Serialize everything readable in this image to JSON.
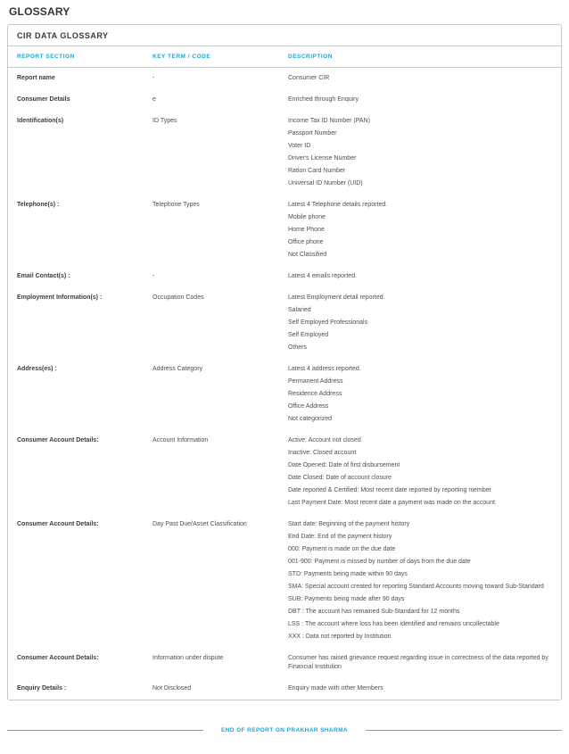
{
  "page_title": "GLOSSARY",
  "panel": {
    "title": "CIR DATA GLOSSARY",
    "columns": [
      "REPORT SECTION",
      "KEY TERM / CODE",
      "DESCRIPTION"
    ],
    "rows": [
      {
        "section": "Report name",
        "key_term": "-",
        "description": [
          "Consumer CIR"
        ]
      },
      {
        "section": "Consumer Details",
        "key_term": "e",
        "description": [
          "Enriched through Enquiry"
        ]
      },
      {
        "section": "Identification(s)",
        "key_term": "ID Types",
        "description": [
          "Income Tax ID Number (PAN)",
          "Passport Number",
          "Voter ID",
          "Driver's License Number",
          "Ration Card Number",
          "Universal ID Number (UID)"
        ]
      },
      {
        "section": "Telephone(s) :",
        "key_term": "Telephone Types",
        "description": [
          "Latest 4 Telephone details reported.",
          "Mobile phone",
          "Home Phone",
          "Office phone",
          "Not Classified"
        ]
      },
      {
        "section": "Email Contact(s) :",
        "key_term": "-",
        "description": [
          "Latest 4 emails reported."
        ]
      },
      {
        "section": "Employment Information(s) :",
        "key_term": "Occupation Codes",
        "description": [
          "Latest Employment detail reported.",
          "Salaried",
          "Self Employed Professionals",
          "Self Employed",
          "Others"
        ]
      },
      {
        "section": "Address(es) :",
        "key_term": "Address Category",
        "description": [
          "Latest 4 address reported.",
          "Permanent Address",
          "Residence Address",
          "Office Address",
          "Not categorized"
        ]
      },
      {
        "section": "Consumer Account Details:",
        "key_term": "Account Information",
        "description": [
          "Active: Account not closed",
          "Inactive: Closed account",
          "Date Opened: Date of first disbursement",
          "Date Closed: Date of account closure",
          "Date reported & Certified: Most recent date reported by reporting member",
          "Last Payment Date: Most recent date a payment was made on the account."
        ]
      },
      {
        "section": "Consumer Account Details:",
        "key_term": "Day Past Due/Asset Classification",
        "description": [
          "Start date: Beginning of the payment history",
          "End Date: End of the payment history",
          "000: Payment is made on the due date",
          "001-900: Payment is missed by number of days from the due date",
          "STD: Payments being made within 90 days",
          "SMA: Special account created for reporting Standard Accounts moving toward Sub-Standard",
          "SUB: Payments being made after 90 days",
          "DBT : The account has remained Sub-Standard for 12 months",
          "LSS : The account where loss has been identified and remains uncollectable",
          "XXX : Data not reported by Institution"
        ]
      },
      {
        "section": "Consumer Account Details:",
        "key_term": "Information under dispute",
        "description": [
          "Consumer has raised grievance request regarding issue in correctness of the data reported by Financial Institution"
        ]
      },
      {
        "section": "Enquiry Details :",
        "key_term": "Not Disclosed",
        "description": [
          "Enquiry made with other Members"
        ]
      }
    ]
  },
  "footer": {
    "end_text": "END OF REPORT ON PRAKHAR SHARMA"
  },
  "colors": {
    "accent": "#1ba7d6",
    "heading": "#333333",
    "label": "#3c3c3c",
    "body": "#4f4f4f",
    "border": "#c8c8c8",
    "divider_line": "#9a9a9a"
  }
}
